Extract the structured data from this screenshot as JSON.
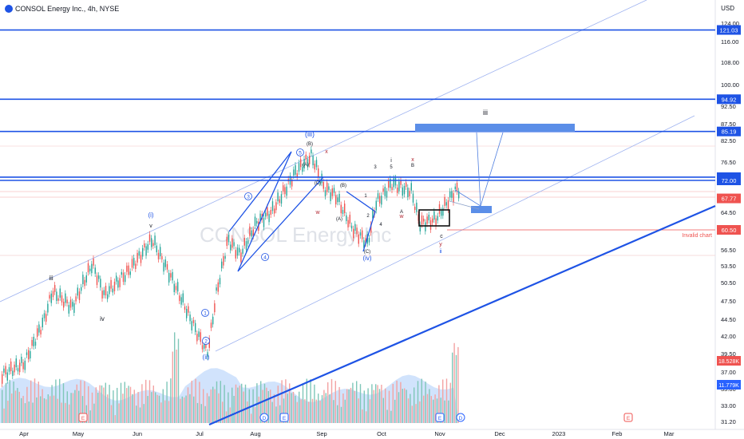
{
  "header": {
    "symbol_line": "CONSOL Energy Inc., 4h, NYSE",
    "currency": "USD"
  },
  "watermark": "CONSOL Energy Inc",
  "colors": {
    "up": "#26a69a",
    "down": "#ef5350",
    "accent": "#2962ff",
    "wave_blue": "#1e53e5",
    "wave_red": "#b22833",
    "volume": "#5b9cf6"
  },
  "chart_data": {
    "type": "candlestick",
    "title": "CONSOL Energy Inc., 4h, NYSE",
    "x_ticks": [
      "Apr",
      "May",
      "Jun",
      "Jul",
      "Aug",
      "Sep",
      "Oct",
      "Nov",
      "Dec",
      "2023",
      "Feb",
      "Mar"
    ],
    "y_ticks": [
      "124.00",
      "116.00",
      "108.00",
      "100.00",
      "92.50",
      "87.50",
      "82.50",
      "76.50",
      "72.00",
      "64.50",
      "60.50",
      "56.50",
      "53.50",
      "50.50",
      "47.50",
      "44.50",
      "42.00",
      "39.50",
      "37.00",
      "35.00",
      "33.00",
      "31.20"
    ],
    "ylim": [
      31.2,
      126
    ],
    "horizontal_levels": [
      {
        "value": 121.03,
        "label": "121.03"
      },
      {
        "value": 94.92,
        "label": "94.92"
      },
      {
        "value": 85.19,
        "label": "85.19"
      },
      {
        "value": 72.79,
        "label": "72.79"
      },
      {
        "value": 72.0,
        "label": "72.00"
      }
    ],
    "markers": [
      {
        "value": 67.77,
        "label": "67.77",
        "color": "#ef5350"
      },
      {
        "value": 60.5,
        "label": "60.50",
        "color": "#ef5350",
        "note": "Invalid chart"
      }
    ],
    "volume_labels": [
      {
        "label": "18.528K"
      },
      {
        "label": "11.779K"
      }
    ],
    "wave_labels": {
      "primary_i": "(i)",
      "primary_ii": "(ii)",
      "primary_iii": "(iii)",
      "primary_iv": "(iv)",
      "minor_1": "1",
      "minor_2": "2",
      "minor_3": "3",
      "minor_4": "4",
      "minor_5": "5",
      "sub_iii": "iii",
      "sub_iv": "iv",
      "sub_v": "v",
      "corr_A": "(A)",
      "corr_B": "(B)",
      "corr_C": "(C)",
      "w": "w",
      "x": "x",
      "y": "y",
      "A": "A",
      "B": "B",
      "C": "C",
      "ii": "ii",
      "iii": "iii",
      "i": "i",
      "c": "c",
      "target": "iii"
    },
    "events": [
      "E",
      "D",
      "E",
      "E",
      "D",
      "E"
    ]
  }
}
